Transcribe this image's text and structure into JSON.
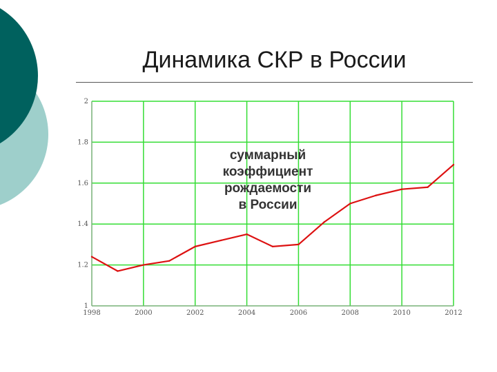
{
  "slide": {
    "title": "Динамика СКР в России"
  },
  "colors": {
    "decor_dark": "#00615E",
    "decor_light": "#9ECFCB",
    "grid": "#33DD33",
    "line": "#DD1111",
    "axis": "#999999",
    "text": "#333333"
  },
  "chart_data": {
    "type": "line",
    "title": "",
    "xlabel": "",
    "ylabel": "",
    "xlim": [
      1998,
      2012
    ],
    "ylim": [
      1,
      2
    ],
    "grid": true,
    "x_ticks": [
      1998,
      2000,
      2002,
      2004,
      2006,
      2008,
      2010,
      2012
    ],
    "x_tick_labels": [
      "1998",
      "2000",
      "2002",
      "2004",
      "2006",
      "2008",
      "2010",
      "2012"
    ],
    "y_ticks": [
      1,
      1.2,
      1.4,
      1.6,
      1.8,
      2
    ],
    "y_tick_labels": [
      "1",
      "1.2",
      "1.4",
      "1.6",
      "1.8",
      "2"
    ],
    "annotation": [
      "суммарный",
      "коэффициент",
      "рождаемости",
      "в России"
    ],
    "series": [
      {
        "x": [
          1998,
          1999,
          2000,
          2001,
          2002,
          2003,
          2004,
          2005,
          2006,
          2007,
          2008,
          2009,
          2010,
          2011,
          2012
        ],
        "values": [
          1.24,
          1.17,
          1.2,
          1.22,
          1.29,
          1.32,
          1.35,
          1.29,
          1.3,
          1.41,
          1.5,
          1.54,
          1.57,
          1.58,
          1.69
        ]
      }
    ]
  }
}
